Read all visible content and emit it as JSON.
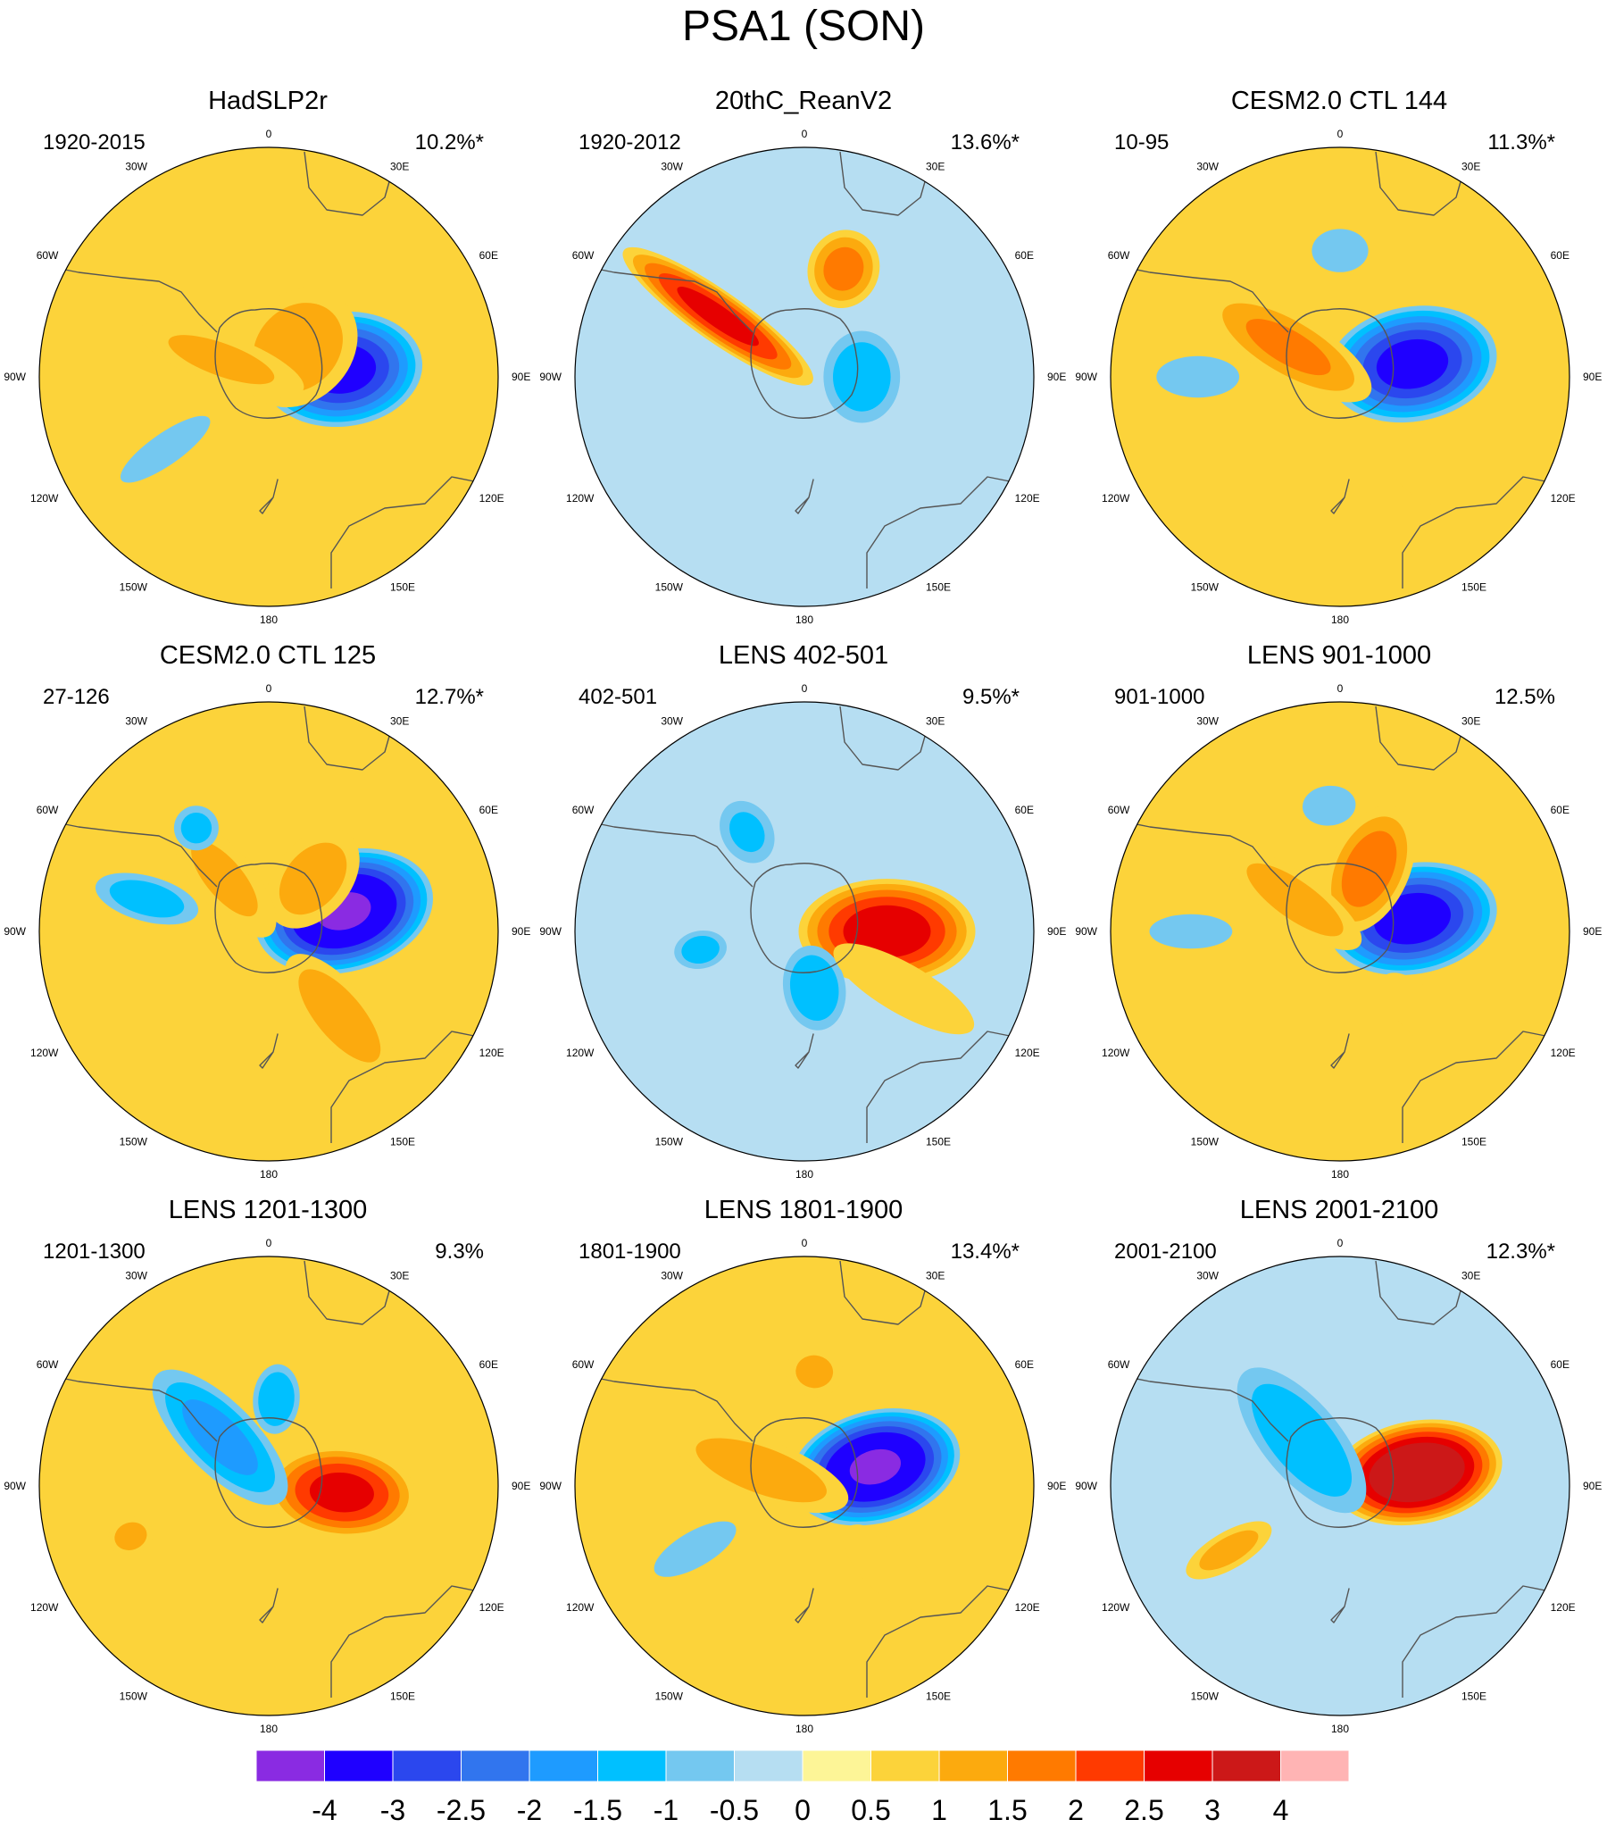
{
  "title": "PSA1 (SON)",
  "chart_data": {
    "type": "heatmap",
    "projection": "south-polar stereographic",
    "variable": "PSA1 SLP regression pattern",
    "longitude_labels": [
      "0",
      "30E",
      "60E",
      "90E",
      "120E",
      "150E",
      "180",
      "150W",
      "120W",
      "90W",
      "60W",
      "30W"
    ],
    "panels": [
      {
        "title": "HadSLP2r",
        "period": "1920-2015",
        "variance": "10.2%*",
        "fill": 0.5,
        "features": [
          {
            "lon": 96,
            "r": 0.32,
            "sx": 0.27,
            "sy": 0.38,
            "value": -3.2
          },
          {
            "lon": 135,
            "r": 0.18,
            "sx": 0.28,
            "sy": 0.34,
            "value": 1.3
          },
          {
            "lon": 250,
            "r": 0.22,
            "sx": 0.14,
            "sy": 0.48,
            "value": 1.0
          },
          {
            "lon": 305,
            "r": 0.55,
            "sx": 0.1,
            "sy": 0.34,
            "value": -0.6
          },
          {
            "lon": 60,
            "r": 0.6,
            "sx": 0.18,
            "sy": 0.22,
            "value": -0.4
          }
        ]
      },
      {
        "title": "20thC_ReanV2",
        "period": "1920-2012",
        "variance": "13.6%*",
        "fill": -0.5,
        "features": [
          {
            "lon": 160,
            "r": 0.5,
            "sx": 0.18,
            "sy": 0.2,
            "value": 1.6
          },
          {
            "lon": 235,
            "r": 0.46,
            "sx": 0.12,
            "sy": 0.55,
            "value": 2.6
          },
          {
            "lon": 90,
            "r": 0.25,
            "sx": 0.24,
            "sy": 0.2,
            "value": -1.3
          },
          {
            "lon": 175,
            "r": 0.08,
            "sx": 0.3,
            "sy": 0.3,
            "value": 0.4
          }
        ]
      },
      {
        "title": "CESM2.0 CTL 144",
        "period": "10-95",
        "variance": "11.3%*",
        "fill": 0.5,
        "features": [
          {
            "lon": 100,
            "r": 0.32,
            "sx": 0.27,
            "sy": 0.4,
            "value": -3.2
          },
          {
            "lon": 240,
            "r": 0.26,
            "sx": 0.17,
            "sy": 0.48,
            "value": 1.5
          },
          {
            "lon": 270,
            "r": 0.62,
            "sx": 0.12,
            "sy": 0.24,
            "value": -0.8
          },
          {
            "lon": 180,
            "r": 0.55,
            "sx": 0.17,
            "sy": 0.13,
            "value": -0.7
          },
          {
            "lon": 40,
            "r": 0.5,
            "sx": 0.13,
            "sy": 0.3,
            "value": 0.8
          }
        ]
      },
      {
        "title": "CESM2.0 CTL 125",
        "period": "27-126",
        "variance": "12.7%*",
        "fill": 0.5,
        "features": [
          {
            "lon": 105,
            "r": 0.34,
            "sx": 0.28,
            "sy": 0.42,
            "value": -4.0
          },
          {
            "lon": 140,
            "r": 0.3,
            "sx": 0.2,
            "sy": 0.3,
            "value": 1.2
          },
          {
            "lon": 220,
            "r": 0.3,
            "sx": 0.16,
            "sy": 0.4,
            "value": 1.0
          },
          {
            "lon": 40,
            "r": 0.48,
            "sx": 0.16,
            "sy": 0.4,
            "value": 1.3
          },
          {
            "lon": 255,
            "r": 0.55,
            "sx": 0.12,
            "sy": 0.28,
            "value": -1.2
          },
          {
            "lon": 215,
            "r": 0.55,
            "sx": 0.12,
            "sy": 0.12,
            "value": -1.1
          }
        ]
      },
      {
        "title": "LENS 402-501",
        "period": "402-501",
        "variance": "9.5%*",
        "fill": -0.5,
        "features": [
          {
            "lon": 90,
            "r": 0.36,
            "sx": 0.25,
            "sy": 0.42,
            "value": 2.8
          },
          {
            "lon": 10,
            "r": 0.25,
            "sx": 0.16,
            "sy": 0.22,
            "value": -1.4
          },
          {
            "lon": 60,
            "r": 0.5,
            "sx": 0.14,
            "sy": 0.45,
            "value": 0.9
          },
          {
            "lon": 280,
            "r": 0.46,
            "sx": 0.1,
            "sy": 0.14,
            "value": -1.2
          },
          {
            "lon": 210,
            "r": 0.5,
            "sx": 0.14,
            "sy": 0.18,
            "value": -1.0
          }
        ]
      },
      {
        "title": "LENS 901-1000",
        "period": "901-1000",
        "variance": "12.5%",
        "fill": 0.5,
        "features": [
          {
            "lon": 100,
            "r": 0.32,
            "sx": 0.26,
            "sy": 0.4,
            "value": -3.3
          },
          {
            "lon": 155,
            "r": 0.3,
            "sx": 0.2,
            "sy": 0.34,
            "value": 1.7
          },
          {
            "lon": 235,
            "r": 0.24,
            "sx": 0.14,
            "sy": 0.42,
            "value": 1.2
          },
          {
            "lon": 270,
            "r": 0.65,
            "sx": 0.1,
            "sy": 0.24,
            "value": -0.8
          },
          {
            "lon": 185,
            "r": 0.55,
            "sx": 0.16,
            "sy": 0.12,
            "value": -0.7
          },
          {
            "lon": 45,
            "r": 0.5,
            "sx": 0.13,
            "sy": 0.3,
            "value": 0.8
          }
        ]
      },
      {
        "title": "LENS 1201-1300",
        "period": "1201-1300",
        "variance": "9.3%",
        "fill": 0.5,
        "features": [
          {
            "lon": 85,
            "r": 0.32,
            "sx": 0.22,
            "sy": 0.36,
            "value": 2.6
          },
          {
            "lon": 225,
            "r": 0.3,
            "sx": 0.18,
            "sy": 0.45,
            "value": -1.6
          },
          {
            "lon": 175,
            "r": 0.38,
            "sx": 0.12,
            "sy": 0.18,
            "value": -1.4
          },
          {
            "lon": 290,
            "r": 0.64,
            "sx": 0.1,
            "sy": 0.12,
            "value": 1.2
          }
        ]
      },
      {
        "title": "LENS 1801-1900",
        "period": "1801-1900",
        "variance": "13.4%*",
        "fill": 0.5,
        "features": [
          {
            "lon": 105,
            "r": 0.32,
            "sx": 0.26,
            "sy": 0.4,
            "value": -4.0
          },
          {
            "lon": 250,
            "r": 0.2,
            "sx": 0.16,
            "sy": 0.48,
            "value": 1.3
          },
          {
            "lon": 175,
            "r": 0.5,
            "sx": 0.16,
            "sy": 0.14,
            "value": 1.0
          },
          {
            "lon": 300,
            "r": 0.55,
            "sx": 0.1,
            "sy": 0.26,
            "value": -0.9
          },
          {
            "lon": 45,
            "r": 0.5,
            "sx": 0.14,
            "sy": 0.32,
            "value": 0.8
          }
        ]
      },
      {
        "title": "LENS 2001-2100",
        "period": "2001-2100",
        "variance": "12.3%*",
        "fill": -0.5,
        "features": [
          {
            "lon": 100,
            "r": 0.34,
            "sx": 0.24,
            "sy": 0.4,
            "value": 3.8
          },
          {
            "lon": 220,
            "r": 0.26,
            "sx": 0.2,
            "sy": 0.46,
            "value": -1.4
          },
          {
            "lon": 300,
            "r": 0.56,
            "sx": 0.1,
            "sy": 0.26,
            "value": 1.1
          },
          {
            "lon": 40,
            "r": 0.5,
            "sx": 0.14,
            "sy": 0.32,
            "value": 0.3
          }
        ]
      }
    ],
    "colorbar": {
      "labels": [
        "-4",
        "-3",
        "-2.5",
        "-2",
        "-1.5",
        "-1",
        "-0.5",
        "0",
        "0.5",
        "1",
        "1.5",
        "2",
        "2.5",
        "3",
        "4"
      ],
      "levels": [
        -4,
        -3,
        -2.5,
        -2,
        -1.5,
        -1,
        -0.5,
        0,
        0.5,
        1,
        1.5,
        2,
        2.5,
        3,
        4
      ],
      "colors": [
        "#8a2be2",
        "#1f00ff",
        "#2b47ee",
        "#3175ee",
        "#1e9bff",
        "#00c0ff",
        "#74c8f0",
        "#b6def2",
        "#fdf597",
        "#fcd33a",
        "#fcaa0e",
        "#ff7a00",
        "#ff3a00",
        "#e60000",
        "#cc1818",
        "#ffb4b4"
      ]
    }
  }
}
